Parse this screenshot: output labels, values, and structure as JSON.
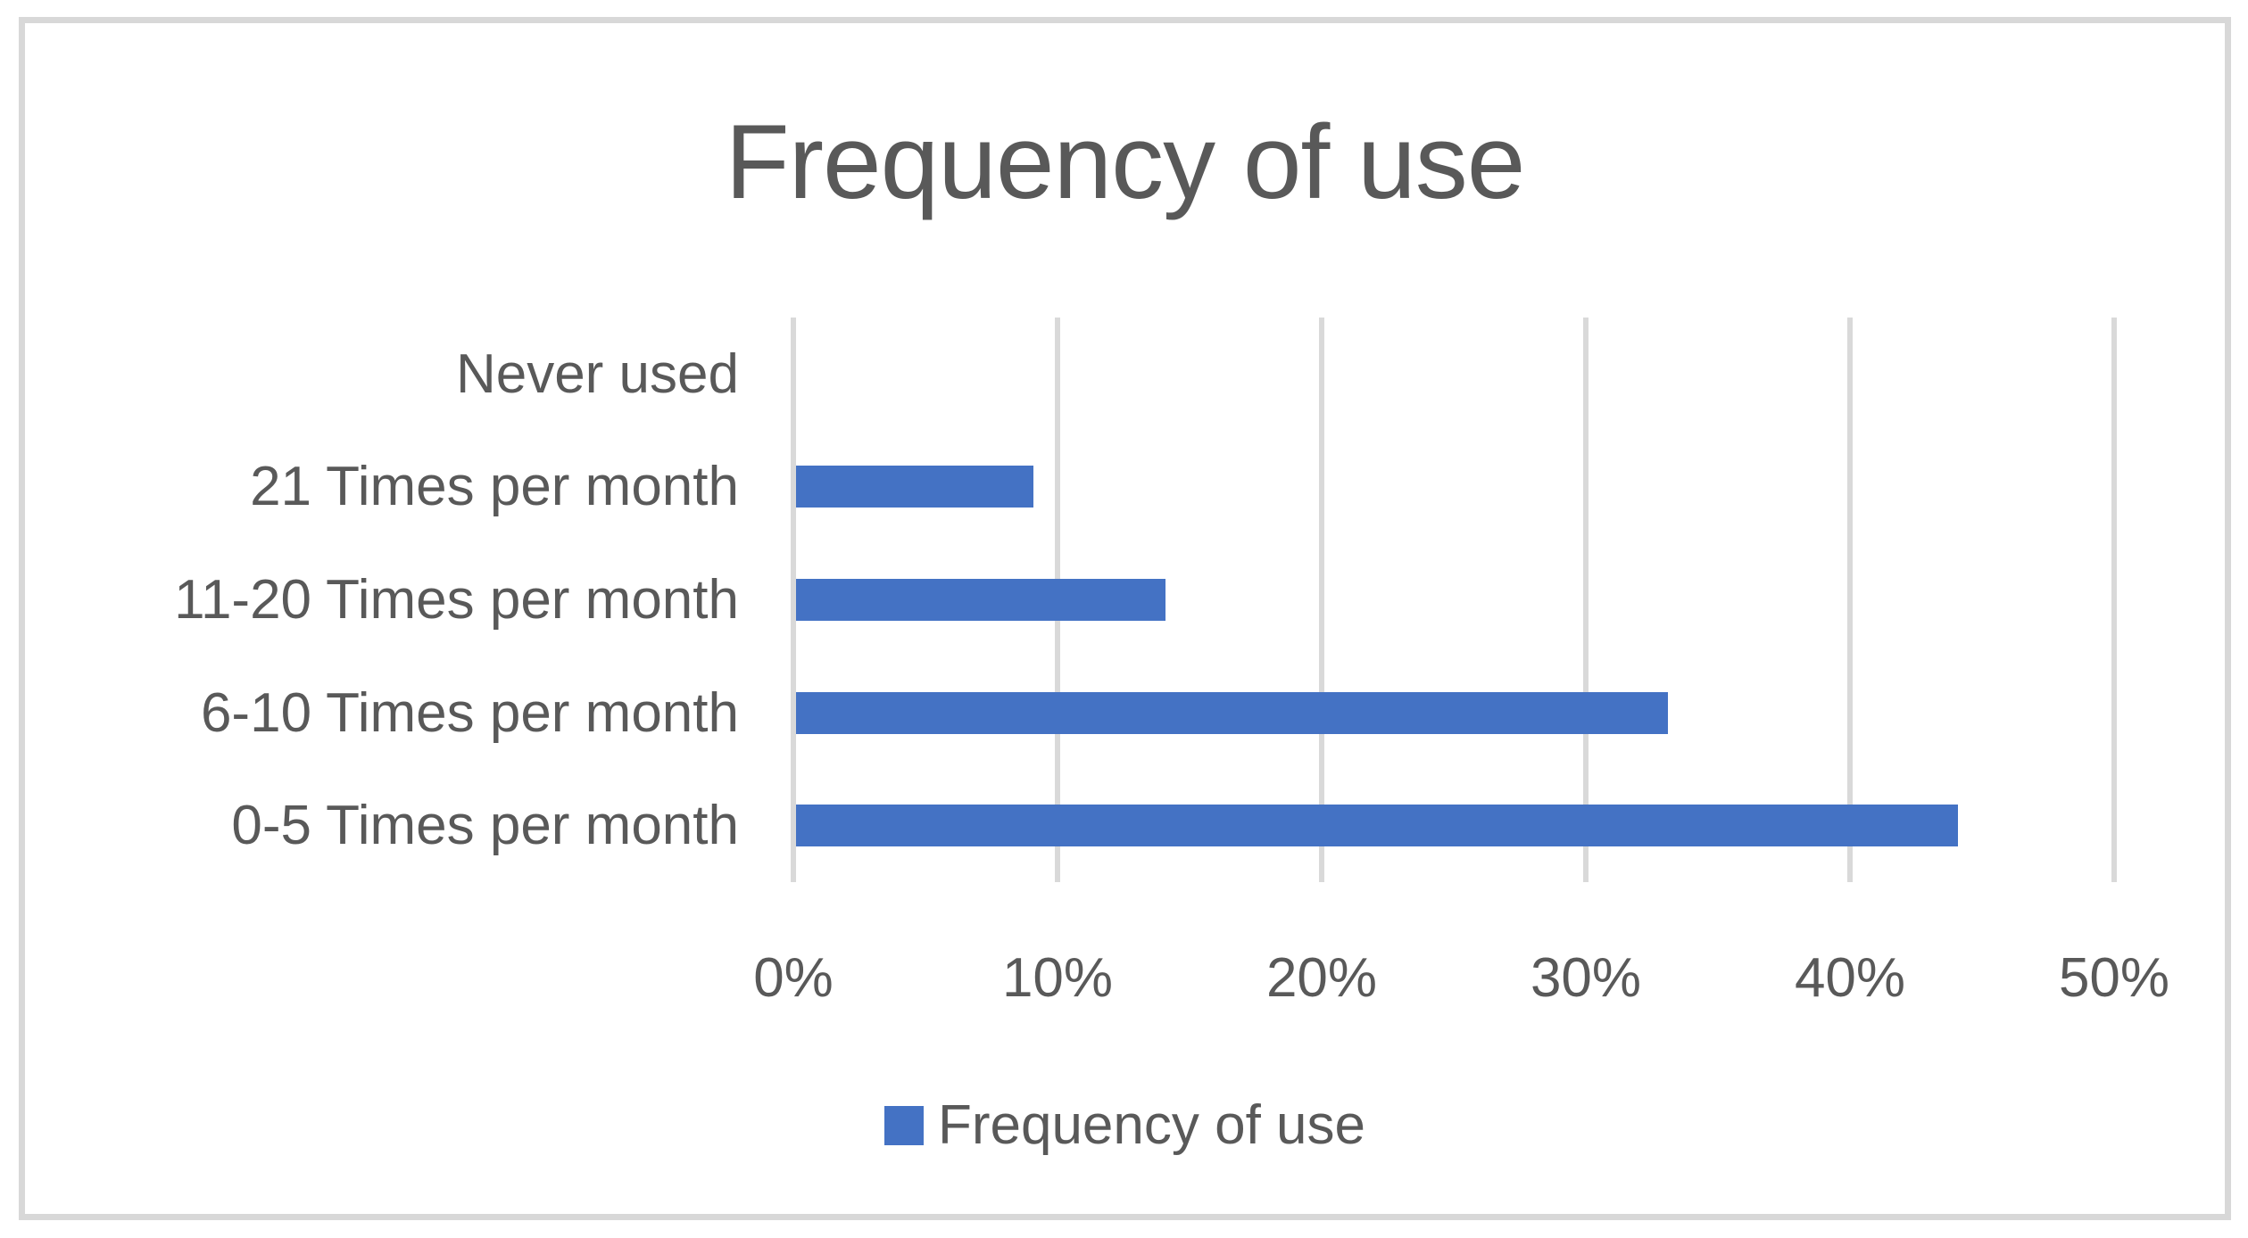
{
  "title": "Frequency of use",
  "legend": {
    "label": "Frequency of use",
    "swatch_color": "#4472C4"
  },
  "chart_data": {
    "type": "bar",
    "orientation": "horizontal",
    "title": "Frequency of use",
    "categories": [
      "Never used",
      "21 Times per month",
      "11-20 Times per month",
      "6-10 Times per month",
      "0-5 Times per month"
    ],
    "series": [
      {
        "name": "Frequency of use",
        "values": [
          0,
          9,
          14,
          33,
          44
        ]
      }
    ],
    "value_unit": "%",
    "xlim": [
      0,
      50
    ],
    "x_ticks": [
      "0%",
      "10%",
      "20%",
      "30%",
      "40%",
      "50%"
    ],
    "x_tick_values": [
      0,
      10,
      20,
      30,
      40,
      50
    ],
    "grid": true,
    "legend_position": "bottom",
    "colors": {
      "bar": "#4472C4",
      "gridline": "#D9D9D9",
      "text": "#595959",
      "border": "#D8D8D8"
    }
  }
}
